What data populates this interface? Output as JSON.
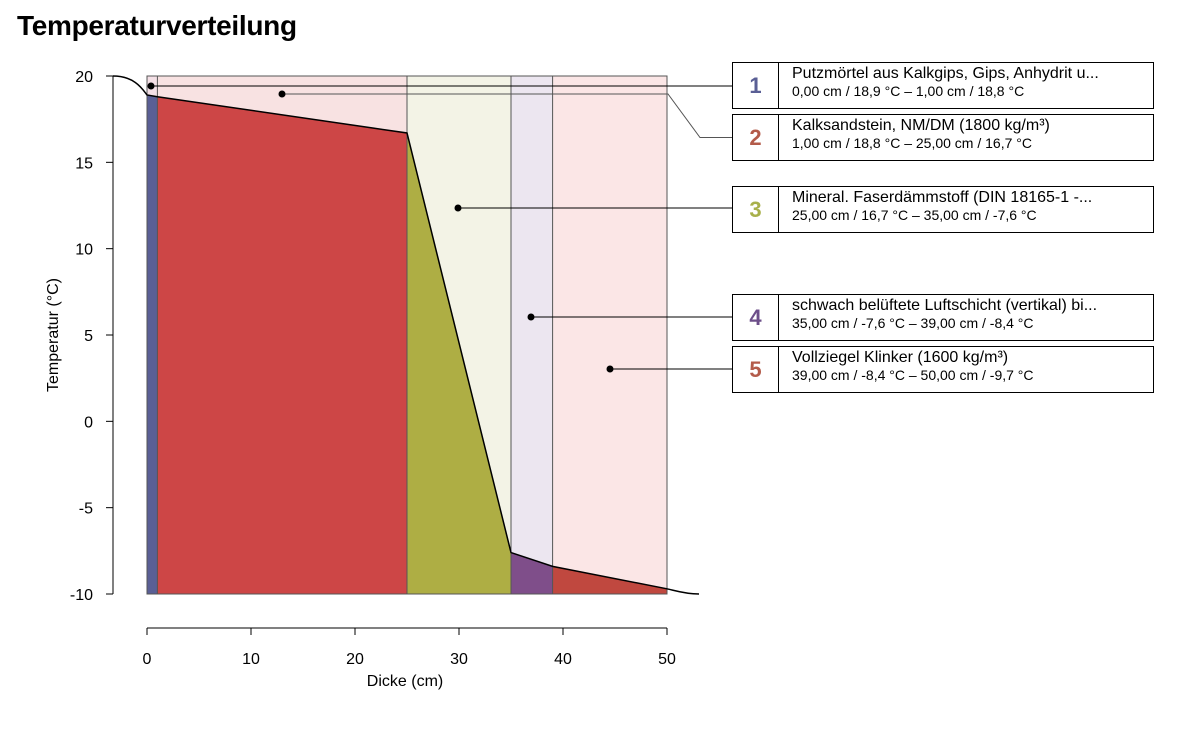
{
  "page": {
    "title": "Temperaturverteilung"
  },
  "chart_data": {
    "type": "area",
    "title": "Temperaturverteilung",
    "xlabel": "Dicke (cm)",
    "ylabel": "Temperatur (°C)",
    "xlim": [
      0,
      50
    ],
    "ylim": [
      -10,
      20
    ],
    "xticks": [
      "0",
      "10",
      "20",
      "30",
      "40",
      "50"
    ],
    "yticks": [
      "20",
      "15",
      "10",
      "5",
      "0",
      "-5",
      "-10"
    ],
    "inside_temperature": 20.0,
    "outside_temperature": -10.0,
    "profile": {
      "x": [
        0,
        1,
        25,
        35,
        39,
        50
      ],
      "y": [
        18.9,
        18.8,
        16.7,
        -7.6,
        -8.4,
        -9.7
      ]
    },
    "layers": [
      {
        "num": "1",
        "name": "Putzmörtel aus Kalkgips, Gips, Anhydrit u...",
        "range": "0,00 cm / 18,9 °C  –  1,00 cm / 18,8 °C",
        "x0": 0,
        "x1": 1,
        "t0": 18.9,
        "t1": 18.8,
        "fill": "#5a5f95",
        "bg": "#f4e0e6",
        "numColor": "#5a5f95"
      },
      {
        "num": "2",
        "name": "Kalksandstein, NM/DM  (1800 kg/m³)",
        "range": "1,00 cm / 18,8 °C  –  25,00 cm / 16,7 °C",
        "x0": 1,
        "x1": 25,
        "t0": 18.8,
        "t1": 16.7,
        "fill": "#cd4646",
        "bg": "#f8e2e2",
        "numColor": "#b35b4a"
      },
      {
        "num": "3",
        "name": "Mineral. Faserdämmstoff  (DIN 18165-1 -...",
        "range": "25,00 cm / 16,7 °C  –  35,00 cm / -7,6 °C",
        "x0": 25,
        "x1": 35,
        "t0": 16.7,
        "t1": -7.6,
        "fill": "#aeae44",
        "bg": "#f3f3e6",
        "numColor": "#a8b04a"
      },
      {
        "num": "4",
        "name": "schwach belüftete Luftschicht (vertikal) bi...",
        "range": "35,00 cm / -7,6 °C  –  39,00 cm / -8,4 °C",
        "x0": 35,
        "x1": 39,
        "t0": -7.6,
        "t1": -8.4,
        "fill": "#7f4e8a",
        "bg": "#ece6f0",
        "numColor": "#6d4f8a"
      },
      {
        "num": "5",
        "name": "Vollziegel Klinker (1600 kg/m³)",
        "range": "39,00 cm / -8,4 °C  –  50,00 cm / -9,7 °C",
        "x0": 39,
        "x1": 50,
        "t0": -8.4,
        "t1": -9.7,
        "fill": "#c0483f",
        "bg": "#fbe6e6",
        "numColor": "#b35b4a"
      }
    ],
    "grid": false,
    "legend": "right"
  }
}
